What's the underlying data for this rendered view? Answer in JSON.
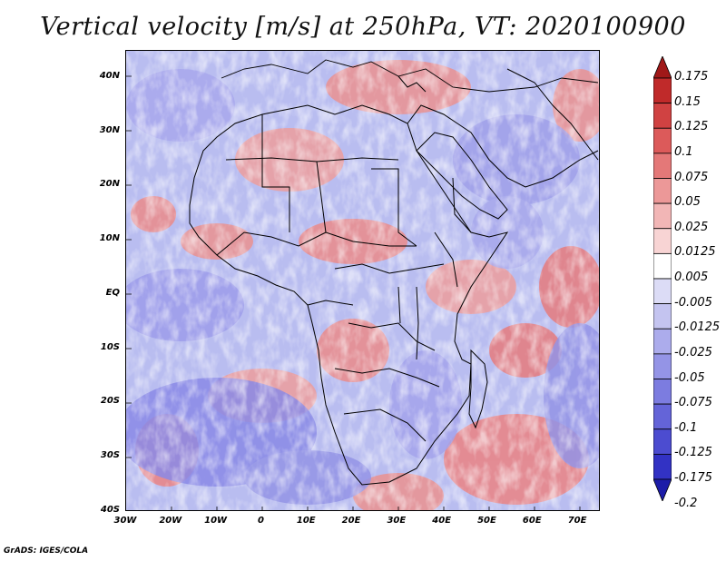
{
  "title": "Vertical velocity [m/s] at 250hPa, VT: 2020100900",
  "credit": "GrADS: IGES/COLA",
  "map": {
    "lat_labels": [
      "40N",
      "30N",
      "20N",
      "10N",
      "EQ",
      "10S",
      "20S",
      "30S",
      "40S"
    ],
    "lat_values": [
      40,
      30,
      20,
      10,
      0,
      -10,
      -20,
      -30,
      -40
    ],
    "lon_labels": [
      "30W",
      "20W",
      "10W",
      "0",
      "10E",
      "20E",
      "30E",
      "40E",
      "50E",
      "60E",
      "70E"
    ],
    "lon_values": [
      -30,
      -20,
      -10,
      0,
      10,
      20,
      30,
      40,
      50,
      60,
      70
    ],
    "lon_range": [
      -30,
      75
    ],
    "lat_range": [
      -40,
      45
    ],
    "field_colors": {
      "ascent": "#e8868a",
      "descent": "#8a8ae6",
      "background": "#b9bdf0"
    }
  },
  "colorbar": {
    "labels": [
      "0.175",
      "0.15",
      "0.125",
      "0.1",
      "0.075",
      "0.05",
      "0.025",
      "0.0125",
      "0.005",
      "-0.005",
      "-0.0125",
      "-0.025",
      "-0.05",
      "-0.075",
      "-0.1",
      "-0.125",
      "-0.175",
      "-0.2"
    ],
    "colors": [
      "#a01818",
      "#c02a2a",
      "#d04242",
      "#dc5a5a",
      "#e47878",
      "#ec9898",
      "#f2b6b6",
      "#f8d4d4",
      "#ffffff",
      "#dcdcf6",
      "#c4c4f0",
      "#acacec",
      "#9494e6",
      "#7c7ce0",
      "#6464d8",
      "#4c4cd0",
      "#3232c4",
      "#1c1ca8"
    ]
  }
}
